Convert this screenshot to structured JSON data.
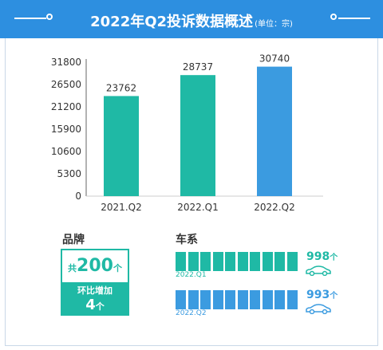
{
  "header": {
    "title": "2022年Q2投诉数据概述",
    "unit": "(单位：宗)"
  },
  "colors": {
    "header_bg": "#2d8fe0",
    "teal": "#1fb9a5",
    "blue": "#3b9be0"
  },
  "chart_data": {
    "type": "bar",
    "categories": [
      "2021.Q2",
      "2022.Q1",
      "2022.Q2"
    ],
    "values": [
      23762,
      28737,
      30740
    ],
    "bar_colors": [
      "#1fb9a5",
      "#1fb9a5",
      "#3b9be0"
    ],
    "yticks": [
      0,
      5300,
      10600,
      15900,
      21200,
      26500,
      31800
    ],
    "ylim": [
      0,
      31800
    ],
    "grid": false,
    "legend": false
  },
  "brand": {
    "section_title": "品牌",
    "prefix": "共",
    "total": "200",
    "suffix": "个",
    "change_label": "环比增加",
    "change_value": "4",
    "change_suffix": "个"
  },
  "series": {
    "section_title": "车系",
    "rows": [
      {
        "caption": "2022.Q1",
        "value": "998",
        "suffix": "个",
        "color": "#1fb9a5"
      },
      {
        "caption": "2022.Q2",
        "value": "993",
        "suffix": "个",
        "color": "#3b9be0"
      }
    ]
  }
}
